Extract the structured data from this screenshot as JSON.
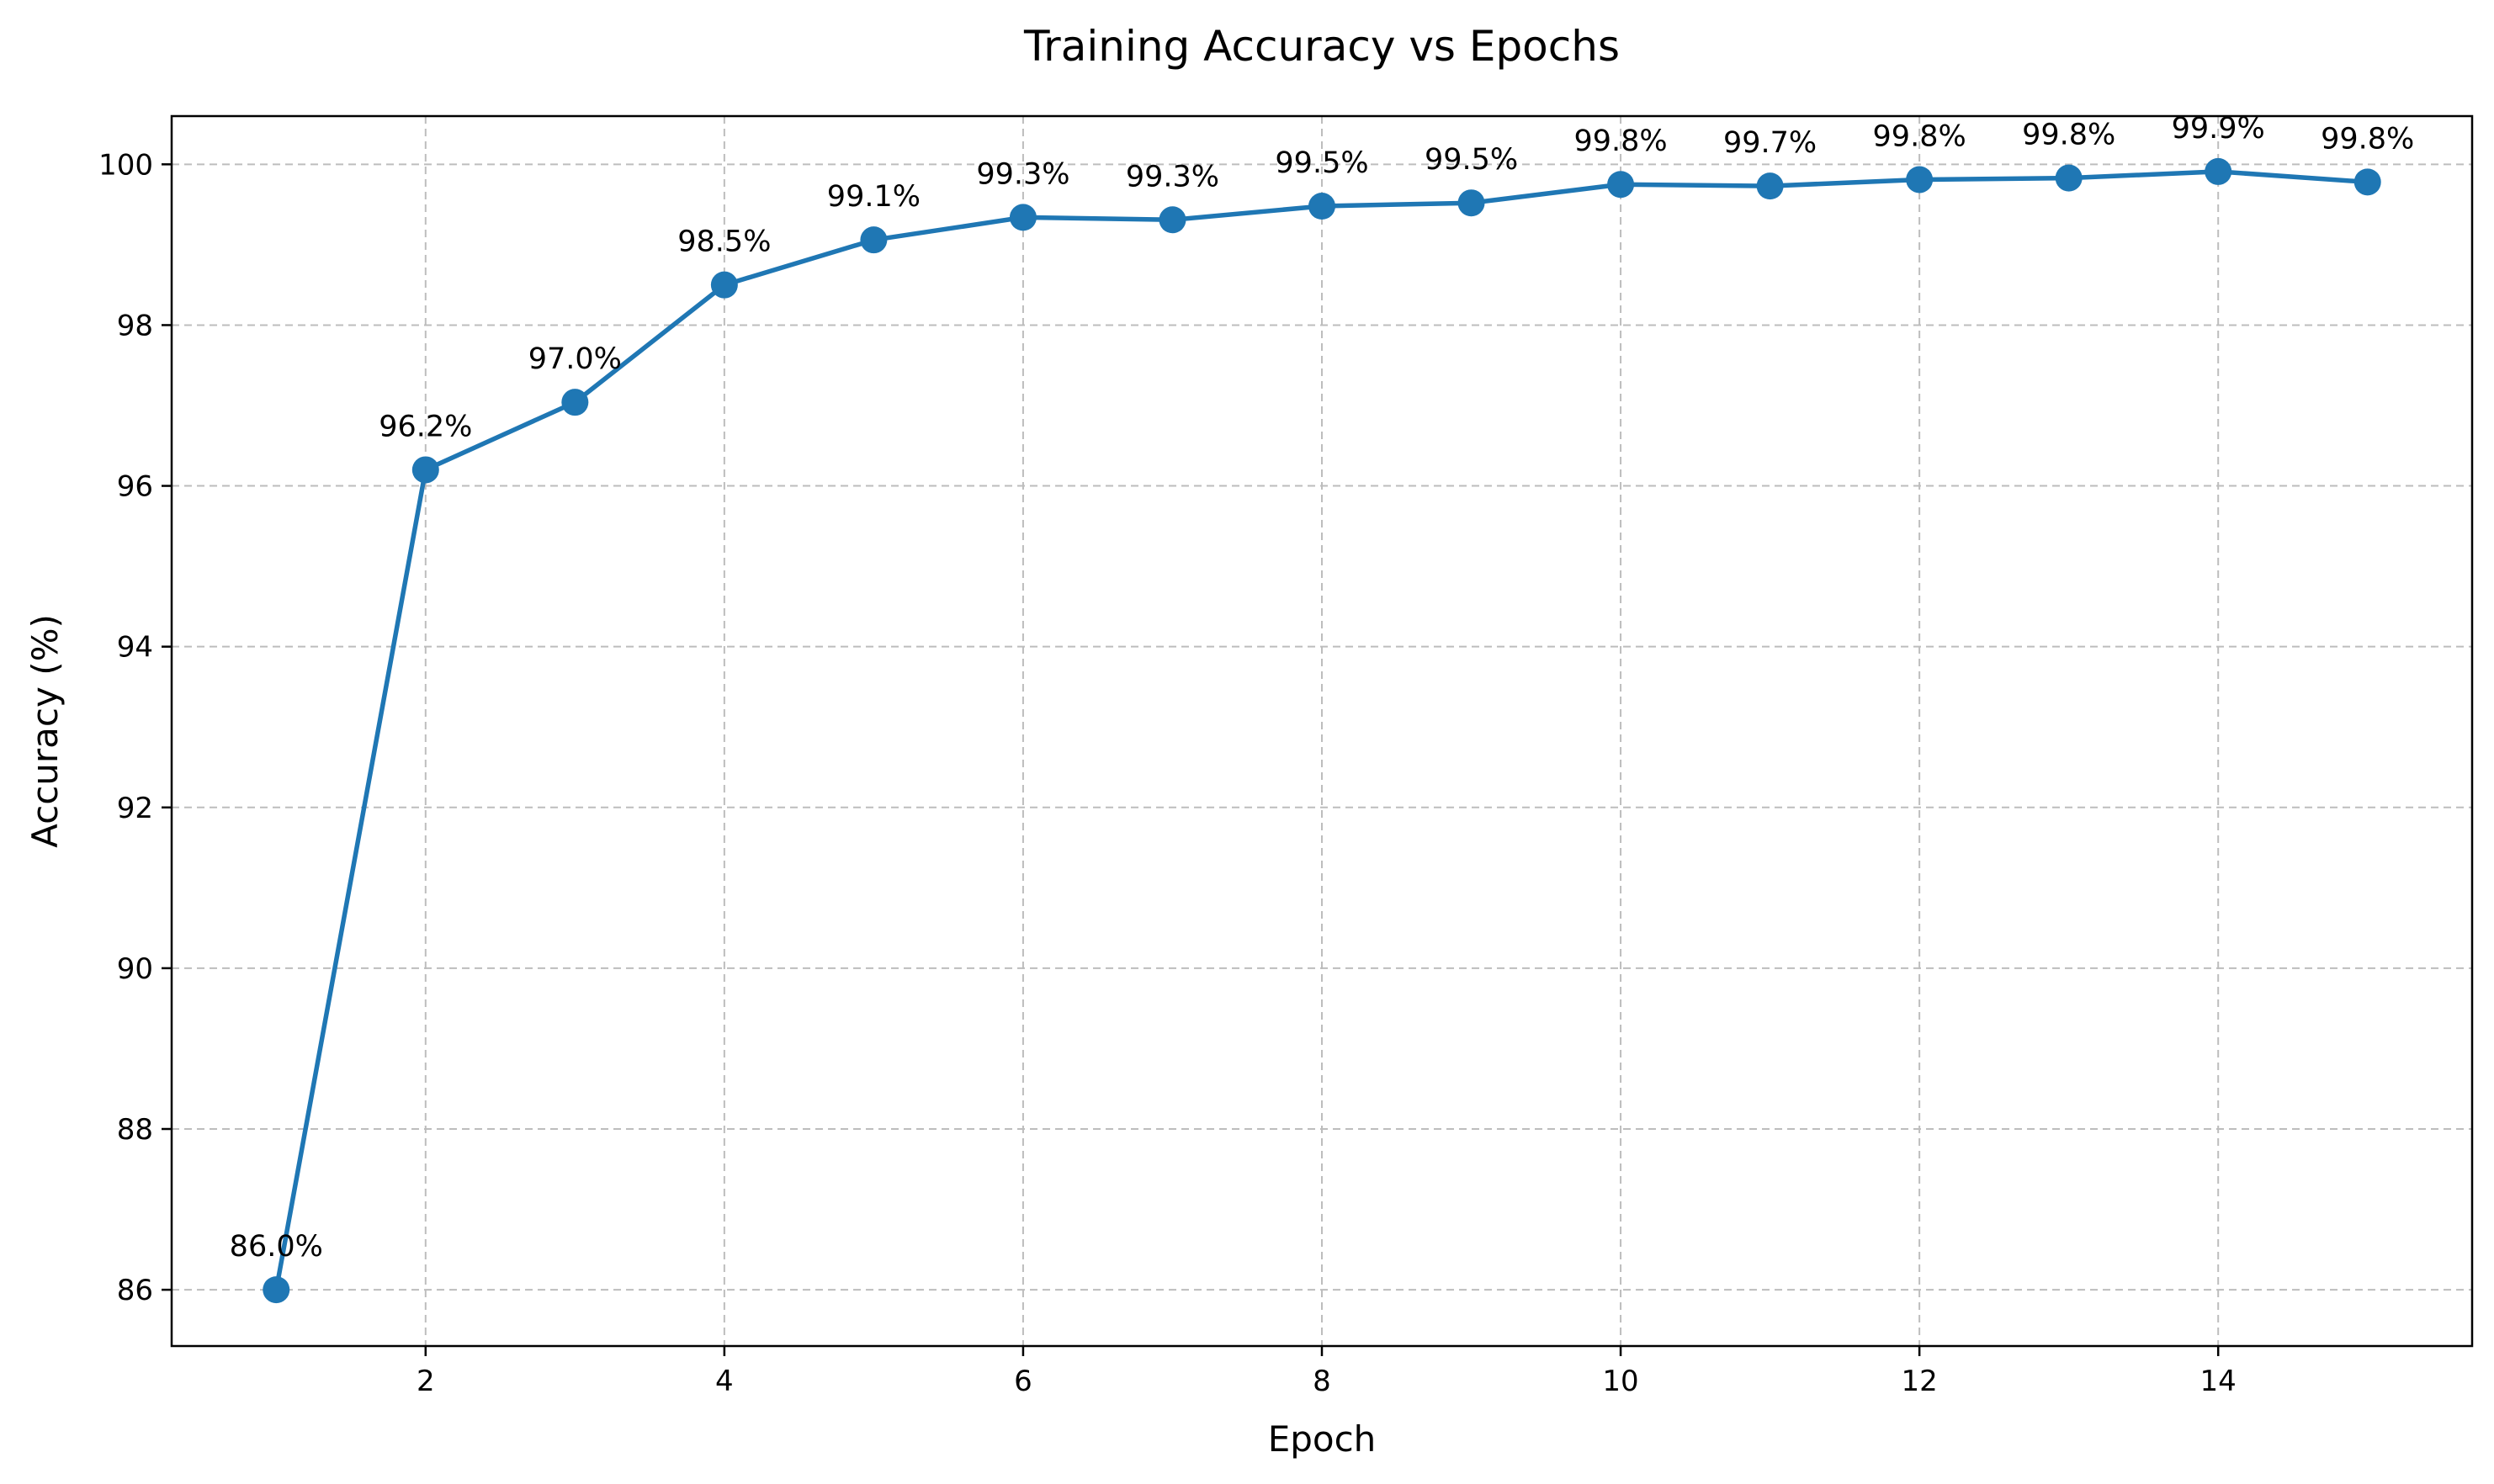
{
  "chart_data": {
    "type": "line",
    "title": "Training Accuracy vs Epochs",
    "xlabel": "Epoch",
    "ylabel": "Accuracy (%)",
    "xlim": [
      0.3,
      15.7
    ],
    "ylim": [
      85.3,
      100.6
    ],
    "xticks": [
      2,
      4,
      6,
      8,
      10,
      12,
      14
    ],
    "yticks": [
      86,
      88,
      90,
      92,
      94,
      96,
      98,
      100
    ],
    "grid": true,
    "series": [
      {
        "color": "#1f77b4",
        "marker": "circle",
        "x": [
          1,
          2,
          3,
          4,
          5,
          6,
          7,
          8,
          9,
          10,
          11,
          12,
          13,
          14,
          15
        ],
        "y": [
          86.0,
          96.2,
          97.04,
          98.5,
          99.06,
          99.34,
          99.31,
          99.48,
          99.52,
          99.75,
          99.73,
          99.81,
          99.83,
          99.91,
          99.78
        ],
        "labels": [
          "86.0%",
          "96.2%",
          "97.0%",
          "98.5%",
          "99.1%",
          "99.3%",
          "99.3%",
          "99.5%",
          "99.5%",
          "99.8%",
          "99.7%",
          "99.8%",
          "99.8%",
          "99.9%",
          "99.8%"
        ]
      }
    ]
  }
}
